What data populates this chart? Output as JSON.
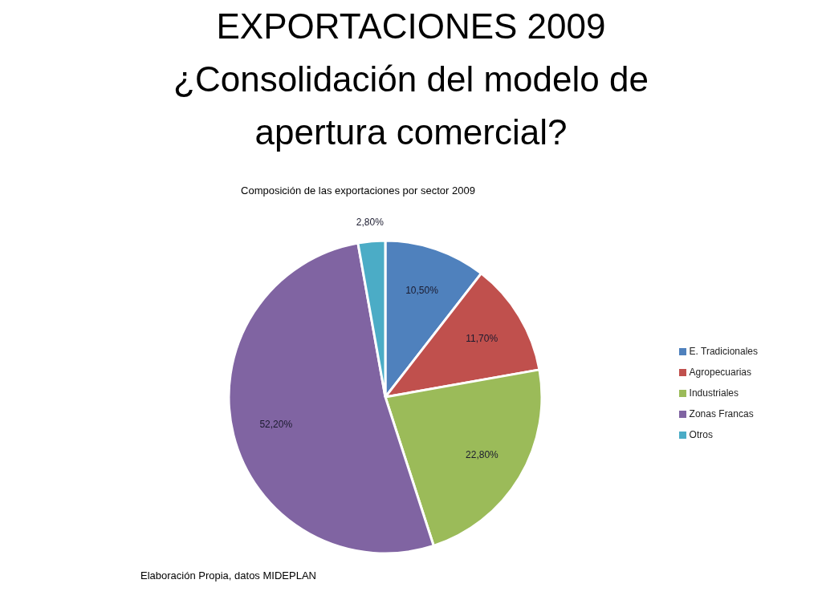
{
  "chart_data": {
    "type": "pie",
    "title": "EXPORTACIONES 2009 ¿Consolidación del modelo de apertura comercial?",
    "subtitle": "Composición de las exportaciones por sector 2009",
    "categories": [
      "E. Tradicionales",
      "Agropecuarias",
      "Industriales",
      "Zonas Francas",
      "Otros"
    ],
    "values": [
      10.5,
      11.7,
      22.8,
      52.2,
      2.8
    ],
    "value_labels": [
      "10,50%",
      "11,70%",
      "22,80%",
      "52,20%",
      "2,80%"
    ],
    "colors": [
      "#4f81bd",
      "#c0504d",
      "#9bbb59",
      "#8064a2",
      "#4bacc6"
    ],
    "legend": "right",
    "annotations": [
      "Elaboración Propia, datos MIDEPLAN"
    ]
  }
}
